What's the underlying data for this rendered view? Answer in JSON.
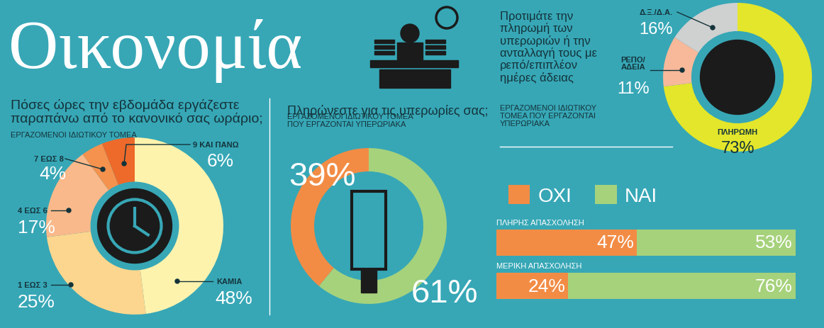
{
  "title": "Οικονομία",
  "chart_data": [
    {
      "type": "pie",
      "title": "Πόσες ώρες την εβδομάδα εργάζεστε παραπάνω από το κανονικό σας ωράριο;",
      "subtitle": "ΕΡΓΑΖΟΜΕΝΟΙ ΙΔΙΩΤΙΚΟΥ ΤΟΜΕΑ",
      "categories": [
        "ΚΑΜΙΑ",
        "1 ΕΩΣ 3",
        "4 ΕΩΣ 6",
        "7 ΕΩΣ 8",
        "9 ΚΑΙ ΠΑΝΩ"
      ],
      "values": [
        48,
        25,
        17,
        4,
        6
      ],
      "value_labels": [
        "48%",
        "25%",
        "17%",
        "4%",
        "6%"
      ],
      "colors": [
        "#fdf3ad",
        "#fcd68e",
        "#f9b98a",
        "#f4924e",
        "#ee6a2a"
      ],
      "data_labels": true
    },
    {
      "type": "pie",
      "title": "Πληρώνεστε για τις υπερωρίες σας;",
      "subtitle": "ΕΡΓΑΖΟΜΕΝΟΙ ΙΔΙΩΤΙΚΟΥ ΤΟΜΕΑ ΠΟΥ ΕΡΓΑΖΟΝΤΑΙ ΥΠΕΡΩΡΙΑΚΑ",
      "values": [
        39,
        61
      ],
      "value_labels": [
        "39%",
        "61%"
      ],
      "colors": [
        "#f28c45",
        "#a6d27c"
      ],
      "data_labels": true
    },
    {
      "type": "pie",
      "title": "Προτιμάτε την πληρωμή των υπερωριών ή την ανταλλαγή τους με ρεπό/επιπλέον ημέρες άδειας",
      "subtitle": "ΕΡΓΑΖΟΜΕΝΟΙ ΙΔΙΩΤΙΚΟΥ ΤΟΜΕΑ ΠΟΥ ΕΡΓΑΖΟΝΤΑΙ ΥΠΕΡΩΡΙΑΚΑ",
      "categories": [
        "ΠΛΗΡΩΜΗ",
        "ΡΕΠΟ/\nΑΔΕΙΑ",
        "Δ.Ξ./Δ.Α."
      ],
      "values": [
        73,
        11,
        16
      ],
      "value_labels": [
        "73%",
        "11%",
        "16%"
      ],
      "colors": [
        "#e3e62a",
        "#f7b99a",
        "#cfd0d0"
      ],
      "data_labels": true
    },
    {
      "type": "bar",
      "orientation": "horizontal",
      "stacked": true,
      "categories": [
        "ΠΛΗΡΗΣ ΑΠΑΣΧΟΛΗΣΗ",
        "ΜΕΡΙΚΗ ΑΠΑΣΧΟΛΗΣΗ"
      ],
      "series": [
        {
          "name": "ΟΧΙ",
          "color": "#f28c45",
          "values": [
            47,
            24
          ],
          "value_labels": [
            "47%",
            "24%"
          ]
        },
        {
          "name": "ΝΑΙ",
          "color": "#a6d27c",
          "values": [
            53,
            76
          ],
          "value_labels": [
            "53%",
            "76%"
          ]
        }
      ],
      "xlim": [
        0,
        100
      ],
      "legend": "upper left",
      "data_labels": true,
      "tick_labels": false
    }
  ]
}
